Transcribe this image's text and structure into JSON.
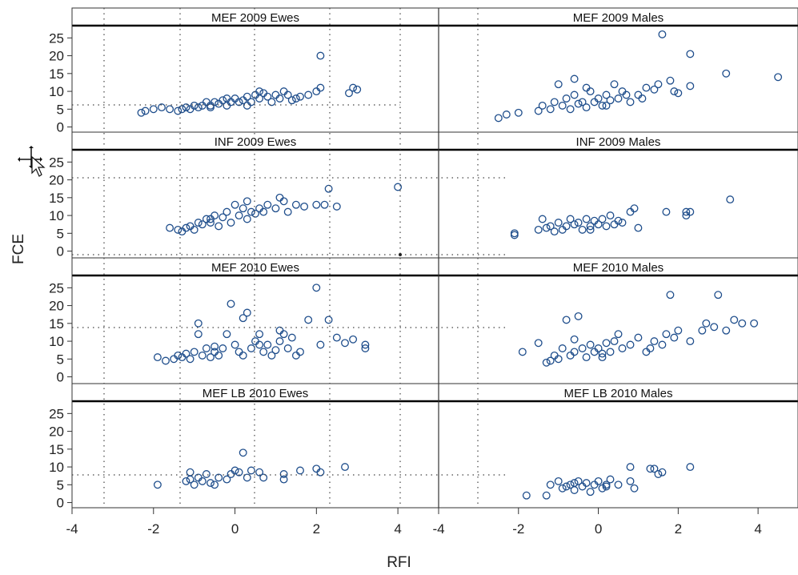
{
  "chart_data": {
    "type": "scatter",
    "xlabel": "RFI",
    "ylabel": "FCE",
    "xlim": [
      -4,
      5
    ],
    "ylim": [
      -1,
      28
    ],
    "xticks": [
      "-4",
      "-2",
      "0",
      "2",
      "4"
    ],
    "yticks": [
      "0",
      "5",
      "10",
      "15",
      "20",
      "25"
    ],
    "marker_color": "#1f4e8c",
    "panels": [
      {
        "title": "MEF 2009 Ewes",
        "row": 0,
        "col": 0,
        "points": [
          [
            -2.3,
            4
          ],
          [
            -2.2,
            4.5
          ],
          [
            -2.0,
            5
          ],
          [
            -1.8,
            5.5
          ],
          [
            -1.6,
            5
          ],
          [
            -1.4,
            4.5
          ],
          [
            -1.3,
            5
          ],
          [
            -1.2,
            5.5
          ],
          [
            -1.1,
            5
          ],
          [
            -1.0,
            6
          ],
          [
            -0.9,
            5.5
          ],
          [
            -0.8,
            6
          ],
          [
            -0.7,
            7
          ],
          [
            -0.6,
            6
          ],
          [
            -0.5,
            7
          ],
          [
            -0.4,
            6.5
          ],
          [
            -0.3,
            7.5
          ],
          [
            -0.2,
            6
          ],
          [
            -0.1,
            7
          ],
          [
            0.0,
            8
          ],
          [
            0.1,
            7
          ],
          [
            0.2,
            7.5
          ],
          [
            0.3,
            8.5
          ],
          [
            0.4,
            7
          ],
          [
            0.5,
            9
          ],
          [
            0.6,
            8
          ],
          [
            0.7,
            9.5
          ],
          [
            0.8,
            8.5
          ],
          [
            0.9,
            7
          ],
          [
            1.0,
            9
          ],
          [
            1.1,
            8
          ],
          [
            1.2,
            10
          ],
          [
            1.3,
            9
          ],
          [
            1.5,
            8
          ],
          [
            1.6,
            8.5
          ],
          [
            1.8,
            9
          ],
          [
            2.0,
            10
          ],
          [
            2.1,
            11
          ],
          [
            2.1,
            20
          ],
          [
            2.8,
            9.5
          ],
          [
            2.9,
            11
          ],
          [
            3.0,
            10.5
          ],
          [
            -0.6,
            5.5
          ],
          [
            -0.2,
            8
          ],
          [
            0.3,
            6
          ],
          [
            0.6,
            10
          ],
          [
            1.4,
            7.5
          ]
        ]
      },
      {
        "title": "MEF 2009 Males",
        "row": 0,
        "col": 1,
        "points": [
          [
            -2.5,
            2.5
          ],
          [
            -2.3,
            3.5
          ],
          [
            -2.0,
            4
          ],
          [
            -1.5,
            4.5
          ],
          [
            -1.4,
            6
          ],
          [
            -1.2,
            5
          ],
          [
            -1.1,
            7
          ],
          [
            -1.0,
            12
          ],
          [
            -0.9,
            6
          ],
          [
            -0.8,
            8
          ],
          [
            -0.7,
            5
          ],
          [
            -0.6,
            9
          ],
          [
            -0.5,
            6.5
          ],
          [
            -0.4,
            7
          ],
          [
            -0.3,
            5.5
          ],
          [
            -0.2,
            10
          ],
          [
            -0.1,
            7
          ],
          [
            0.0,
            8
          ],
          [
            0.1,
            6
          ],
          [
            0.2,
            9
          ],
          [
            0.3,
            7.5
          ],
          [
            0.4,
            12
          ],
          [
            0.5,
            8
          ],
          [
            0.6,
            10
          ],
          [
            0.8,
            7
          ],
          [
            1.0,
            9
          ],
          [
            1.2,
            11
          ],
          [
            1.4,
            10.5
          ],
          [
            1.5,
            12
          ],
          [
            1.6,
            26
          ],
          [
            1.8,
            13
          ],
          [
            1.9,
            10
          ],
          [
            2.0,
            9.5
          ],
          [
            2.3,
            11.5
          ],
          [
            2.3,
            20.5
          ],
          [
            3.2,
            15
          ],
          [
            4.5,
            14
          ],
          [
            -0.6,
            13.5
          ],
          [
            -0.3,
            11
          ],
          [
            0.2,
            6
          ],
          [
            0.7,
            9
          ],
          [
            1.1,
            8
          ]
        ]
      },
      {
        "title": "INF 2009 Ewes",
        "row": 1,
        "col": 0,
        "points": [
          [
            -1.6,
            6.5
          ],
          [
            -1.4,
            6
          ],
          [
            -1.3,
            5.5
          ],
          [
            -1.2,
            6.5
          ],
          [
            -1.1,
            7
          ],
          [
            -1.0,
            6
          ],
          [
            -0.9,
            8
          ],
          [
            -0.8,
            7.5
          ],
          [
            -0.7,
            9
          ],
          [
            -0.6,
            8
          ],
          [
            -0.5,
            10
          ],
          [
            -0.4,
            7
          ],
          [
            -0.3,
            9.5
          ],
          [
            -0.2,
            11
          ],
          [
            -0.1,
            8
          ],
          [
            0.0,
            13
          ],
          [
            0.1,
            10
          ],
          [
            0.2,
            12
          ],
          [
            0.3,
            9
          ],
          [
            0.4,
            11
          ],
          [
            0.5,
            10.5
          ],
          [
            0.6,
            12
          ],
          [
            0.8,
            13
          ],
          [
            1.0,
            12
          ],
          [
            1.1,
            15
          ],
          [
            1.2,
            14
          ],
          [
            1.3,
            11
          ],
          [
            1.5,
            13
          ],
          [
            1.7,
            12.5
          ],
          [
            2.0,
            13
          ],
          [
            2.2,
            13
          ],
          [
            2.3,
            17.5
          ],
          [
            2.5,
            12.5
          ],
          [
            4.0,
            18
          ],
          [
            -0.6,
            9
          ],
          [
            0.3,
            14
          ],
          [
            0.7,
            11
          ]
        ]
      },
      {
        "title": "INF 2009 Males",
        "row": 1,
        "col": 1,
        "points": [
          [
            -2.1,
            5
          ],
          [
            -2.1,
            4.5
          ],
          [
            -1.5,
            6
          ],
          [
            -1.4,
            9
          ],
          [
            -1.3,
            6.5
          ],
          [
            -1.2,
            7
          ],
          [
            -1.1,
            5.5
          ],
          [
            -1.0,
            8
          ],
          [
            -0.9,
            6
          ],
          [
            -0.8,
            7
          ],
          [
            -0.7,
            9
          ],
          [
            -0.6,
            7.5
          ],
          [
            -0.5,
            8
          ],
          [
            -0.4,
            6
          ],
          [
            -0.3,
            9
          ],
          [
            -0.2,
            7
          ],
          [
            -0.1,
            8.5
          ],
          [
            0.0,
            7.5
          ],
          [
            0.1,
            9
          ],
          [
            0.2,
            7
          ],
          [
            0.3,
            10
          ],
          [
            0.4,
            7.5
          ],
          [
            0.6,
            8
          ],
          [
            0.8,
            11
          ],
          [
            0.9,
            12
          ],
          [
            1.0,
            6.5
          ],
          [
            1.7,
            11
          ],
          [
            2.2,
            11
          ],
          [
            2.2,
            10
          ],
          [
            2.3,
            11
          ],
          [
            3.3,
            14.5
          ],
          [
            -0.2,
            6
          ],
          [
            0.5,
            8.5
          ]
        ]
      },
      {
        "title": "MEF 2010 Ewes",
        "row": 2,
        "col": 0,
        "points": [
          [
            -1.9,
            5.5
          ],
          [
            -1.7,
            4.5
          ],
          [
            -1.5,
            5
          ],
          [
            -1.4,
            6
          ],
          [
            -1.3,
            5.5
          ],
          [
            -1.2,
            6.5
          ],
          [
            -1.1,
            5
          ],
          [
            -1.0,
            7
          ],
          [
            -0.9,
            15
          ],
          [
            -0.9,
            12
          ],
          [
            -0.8,
            6
          ],
          [
            -0.7,
            8
          ],
          [
            -0.6,
            5.5
          ],
          [
            -0.5,
            7
          ],
          [
            -0.4,
            6
          ],
          [
            -0.3,
            8
          ],
          [
            -0.2,
            12
          ],
          [
            -0.1,
            20.5
          ],
          [
            0.0,
            9
          ],
          [
            0.1,
            7
          ],
          [
            0.2,
            16.5
          ],
          [
            0.3,
            18
          ],
          [
            0.4,
            8
          ],
          [
            0.5,
            10
          ],
          [
            0.6,
            12
          ],
          [
            0.7,
            7
          ],
          [
            0.8,
            9
          ],
          [
            0.9,
            6
          ],
          [
            1.0,
            7.5
          ],
          [
            1.1,
            10
          ],
          [
            1.2,
            12
          ],
          [
            1.3,
            8
          ],
          [
            1.4,
            11
          ],
          [
            1.5,
            6
          ],
          [
            1.6,
            7
          ],
          [
            1.8,
            16
          ],
          [
            2.0,
            25
          ],
          [
            2.1,
            9
          ],
          [
            2.3,
            16
          ],
          [
            2.5,
            11
          ],
          [
            2.7,
            9.5
          ],
          [
            2.9,
            10.5
          ],
          [
            3.2,
            9
          ],
          [
            3.2,
            8
          ],
          [
            -0.5,
            8.5
          ],
          [
            0.2,
            6
          ],
          [
            0.6,
            9
          ],
          [
            1.1,
            13
          ]
        ]
      },
      {
        "title": "MEF 2010 Males",
        "row": 2,
        "col": 1,
        "points": [
          [
            -1.9,
            7
          ],
          [
            -1.5,
            9.5
          ],
          [
            -1.3,
            4
          ],
          [
            -1.2,
            4.5
          ],
          [
            -1.1,
            6
          ],
          [
            -1.0,
            5
          ],
          [
            -0.9,
            8
          ],
          [
            -0.8,
            16
          ],
          [
            -0.7,
            6
          ],
          [
            -0.6,
            7
          ],
          [
            -0.5,
            17
          ],
          [
            -0.4,
            8
          ],
          [
            -0.3,
            5.5
          ],
          [
            -0.2,
            9
          ],
          [
            -0.1,
            7
          ],
          [
            0.0,
            8
          ],
          [
            0.1,
            6.5
          ],
          [
            0.2,
            9.5
          ],
          [
            0.3,
            7
          ],
          [
            0.4,
            10
          ],
          [
            0.6,
            8
          ],
          [
            0.8,
            9
          ],
          [
            1.0,
            11
          ],
          [
            1.2,
            7
          ],
          [
            1.4,
            10
          ],
          [
            1.6,
            9
          ],
          [
            1.7,
            12
          ],
          [
            1.8,
            23
          ],
          [
            1.9,
            11
          ],
          [
            2.0,
            13
          ],
          [
            2.3,
            10
          ],
          [
            2.6,
            13
          ],
          [
            2.7,
            15
          ],
          [
            2.9,
            14
          ],
          [
            3.0,
            23
          ],
          [
            3.2,
            13
          ],
          [
            3.4,
            16
          ],
          [
            3.6,
            15
          ],
          [
            3.9,
            15
          ],
          [
            -0.6,
            10.5
          ],
          [
            0.1,
            5.5
          ],
          [
            0.5,
            12
          ],
          [
            1.3,
            8
          ]
        ]
      },
      {
        "title": "MEF LB 2010 Ewes",
        "row": 3,
        "col": 0,
        "points": [
          [
            -1.9,
            5
          ],
          [
            -1.2,
            6
          ],
          [
            -1.1,
            8.5
          ],
          [
            -1.0,
            5
          ],
          [
            -0.9,
            7
          ],
          [
            -0.8,
            6
          ],
          [
            -0.7,
            8
          ],
          [
            -0.6,
            5.5
          ],
          [
            -0.4,
            7
          ],
          [
            -0.2,
            6.5
          ],
          [
            -0.1,
            8
          ],
          [
            0.0,
            9
          ],
          [
            0.1,
            8.5
          ],
          [
            0.2,
            14
          ],
          [
            0.3,
            7
          ],
          [
            0.4,
            9
          ],
          [
            0.6,
            8.5
          ],
          [
            0.7,
            7
          ],
          [
            1.2,
            8
          ],
          [
            1.2,
            6.5
          ],
          [
            1.6,
            9
          ],
          [
            2.0,
            9.5
          ],
          [
            2.1,
            8.5
          ],
          [
            2.7,
            10
          ],
          [
            -1.1,
            6.5
          ],
          [
            -0.5,
            5
          ]
        ]
      },
      {
        "title": "MEF LB 2010 Males",
        "row": 3,
        "col": 1,
        "points": [
          [
            -1.8,
            2
          ],
          [
            -1.3,
            2
          ],
          [
            -1.2,
            5
          ],
          [
            -1.0,
            6
          ],
          [
            -0.9,
            4
          ],
          [
            -0.8,
            4.5
          ],
          [
            -0.7,
            5
          ],
          [
            -0.6,
            3.5
          ],
          [
            -0.5,
            6
          ],
          [
            -0.4,
            4.5
          ],
          [
            -0.3,
            5.5
          ],
          [
            -0.2,
            3
          ],
          [
            -0.1,
            5
          ],
          [
            0.0,
            6
          ],
          [
            0.1,
            4
          ],
          [
            0.2,
            5
          ],
          [
            0.3,
            6.5
          ],
          [
            0.5,
            5
          ],
          [
            0.8,
            10
          ],
          [
            0.8,
            6
          ],
          [
            0.9,
            4
          ],
          [
            1.3,
            9.5
          ],
          [
            1.4,
            9.5
          ],
          [
            1.5,
            8
          ],
          [
            1.6,
            8.5
          ],
          [
            2.3,
            10
          ],
          [
            -0.6,
            5.5
          ],
          [
            0.2,
            4.5
          ]
        ]
      }
    ]
  }
}
